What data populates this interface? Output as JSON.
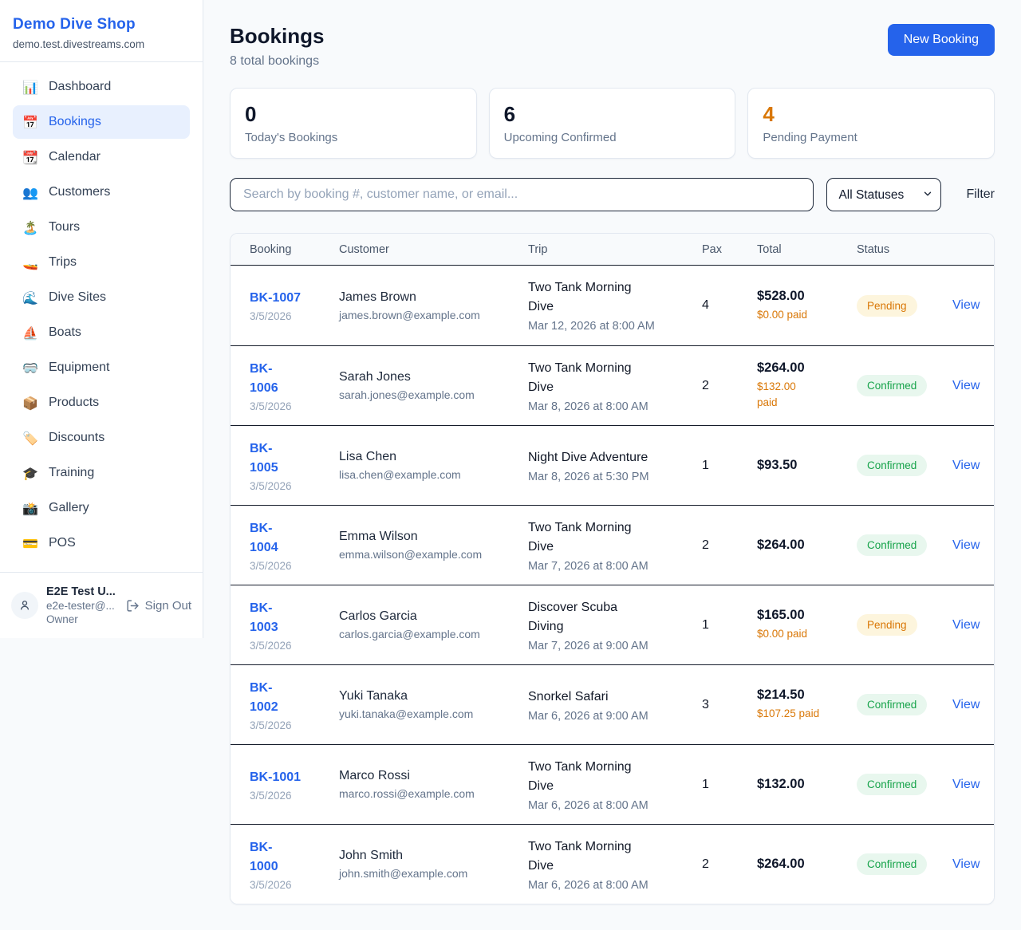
{
  "colors": {
    "accent_blue": "#2563eb",
    "accent_orange": "#d97706",
    "confirmed_green": "#16a34a",
    "page_bg": "#f8fafc"
  },
  "sidebar": {
    "brand": {
      "name": "Demo Dive Shop",
      "domain": "demo.test.divestreams.com"
    },
    "items": [
      {
        "icon": "📊",
        "icon_name": "dashboard-icon",
        "label": "Dashboard",
        "active": false
      },
      {
        "icon": "📅",
        "icon_name": "bookings-icon",
        "label": "Bookings",
        "active": true
      },
      {
        "icon": "📆",
        "icon_name": "calendar-icon",
        "label": "Calendar",
        "active": false
      },
      {
        "icon": "👥",
        "icon_name": "customers-icon",
        "label": "Customers",
        "active": false
      },
      {
        "icon": "🏝️",
        "icon_name": "tours-icon",
        "label": "Tours",
        "active": false
      },
      {
        "icon": "🚤",
        "icon_name": "trips-icon",
        "label": "Trips",
        "active": false
      },
      {
        "icon": "🌊",
        "icon_name": "dive-sites-icon",
        "label": "Dive Sites",
        "active": false
      },
      {
        "icon": "⛵",
        "icon_name": "boats-icon",
        "label": "Boats",
        "active": false
      },
      {
        "icon": "🥽",
        "icon_name": "equipment-icon",
        "label": "Equipment",
        "active": false
      },
      {
        "icon": "📦",
        "icon_name": "products-icon",
        "label": "Products",
        "active": false
      },
      {
        "icon": "🏷️",
        "icon_name": "discounts-icon",
        "label": "Discounts",
        "active": false
      },
      {
        "icon": "🎓",
        "icon_name": "training-icon",
        "label": "Training",
        "active": false
      },
      {
        "icon": "📸",
        "icon_name": "gallery-icon",
        "label": "Gallery",
        "active": false
      },
      {
        "icon": "💳",
        "icon_name": "pos-icon",
        "label": "POS",
        "active": false
      }
    ],
    "user": {
      "name": "E2E Test U...",
      "email": "e2e-tester@...",
      "role": "Owner",
      "sign_out_label": "Sign Out"
    }
  },
  "header": {
    "title": "Bookings",
    "subtitle": "8 total bookings",
    "new_booking_label": "New Booking"
  },
  "stats": [
    {
      "value": "0",
      "label": "Today's Bookings",
      "highlight": false
    },
    {
      "value": "6",
      "label": "Upcoming Confirmed",
      "highlight": false
    },
    {
      "value": "4",
      "label": "Pending Payment",
      "highlight": true
    }
  ],
  "filters": {
    "search_placeholder": "Search by booking #, customer name, or email...",
    "status_selected": "All Statuses",
    "filter_label": "Filter"
  },
  "table": {
    "columns": [
      "Booking",
      "Customer",
      "Trip",
      "Pax",
      "Total",
      "Status"
    ],
    "view_label": "View",
    "rows": [
      {
        "id": "BK-1007",
        "id_two_lines": false,
        "date": "3/5/2026",
        "customer_name": "James Brown",
        "customer_email": "james.brown@example.com",
        "trip_name": "Two Tank Morning Dive",
        "trip_datetime": "Mar 12, 2026 at 8:00 AM",
        "pax": "4",
        "total": "$528.00",
        "paid": "$0.00 paid",
        "paid_two_lines": false,
        "status": "Pending"
      },
      {
        "id": "BK-1006",
        "id_two_lines": true,
        "date": "3/5/2026",
        "customer_name": "Sarah Jones",
        "customer_email": "sarah.jones@example.com",
        "trip_name": "Two Tank Morning Dive",
        "trip_datetime": "Mar 8, 2026 at 8:00 AM",
        "pax": "2",
        "total": "$264.00",
        "paid": "$132.00 paid",
        "paid_two_lines": true,
        "status": "Confirmed"
      },
      {
        "id": "BK-1005",
        "id_two_lines": true,
        "date": "3/5/2026",
        "customer_name": "Lisa Chen",
        "customer_email": "lisa.chen@example.com",
        "trip_name": "Night Dive Adventure",
        "trip_datetime": "Mar 8, 2026 at 5:30 PM",
        "pax": "1",
        "total": "$93.50",
        "paid": null,
        "paid_two_lines": false,
        "status": "Confirmed"
      },
      {
        "id": "BK-1004",
        "id_two_lines": true,
        "date": "3/5/2026",
        "customer_name": "Emma Wilson",
        "customer_email": "emma.wilson@example.com",
        "trip_name": "Two Tank Morning Dive",
        "trip_datetime": "Mar 7, 2026 at 8:00 AM",
        "pax": "2",
        "total": "$264.00",
        "paid": null,
        "paid_two_lines": false,
        "status": "Confirmed"
      },
      {
        "id": "BK-1003",
        "id_two_lines": true,
        "date": "3/5/2026",
        "customer_name": "Carlos Garcia",
        "customer_email": "carlos.garcia@example.com",
        "trip_name": "Discover Scuba Diving",
        "trip_datetime": "Mar 7, 2026 at 9:00 AM",
        "pax": "1",
        "total": "$165.00",
        "paid": "$0.00 paid",
        "paid_two_lines": false,
        "status": "Pending"
      },
      {
        "id": "BK-1002",
        "id_two_lines": true,
        "date": "3/5/2026",
        "customer_name": "Yuki Tanaka",
        "customer_email": "yuki.tanaka@example.com",
        "trip_name": "Snorkel Safari",
        "trip_datetime": "Mar 6, 2026 at 9:00 AM",
        "pax": "3",
        "total": "$214.50",
        "paid": "$107.25 paid",
        "paid_two_lines": false,
        "status": "Confirmed"
      },
      {
        "id": "BK-1001",
        "id_two_lines": false,
        "date": "3/5/2026",
        "customer_name": "Marco Rossi",
        "customer_email": "marco.rossi@example.com",
        "trip_name": "Two Tank Morning Dive",
        "trip_datetime": "Mar 6, 2026 at 8:00 AM",
        "pax": "1",
        "total": "$132.00",
        "paid": null,
        "paid_two_lines": false,
        "status": "Confirmed"
      },
      {
        "id": "BK-1000",
        "id_two_lines": true,
        "date": "3/5/2026",
        "customer_name": "John Smith",
        "customer_email": "john.smith@example.com",
        "trip_name": "Two Tank Morning Dive",
        "trip_datetime": "Mar 6, 2026 at 8:00 AM",
        "pax": "2",
        "total": "$264.00",
        "paid": null,
        "paid_two_lines": false,
        "status": "Confirmed"
      }
    ]
  }
}
